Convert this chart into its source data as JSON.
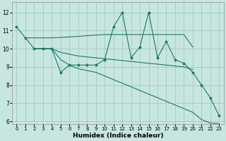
{
  "xlabel": "Humidex (Indice chaleur)",
  "background_color": "#c8e6e0",
  "grid_color": "#a8ccc8",
  "line_color": "#1a7868",
  "xlim": [
    -0.5,
    23.5
  ],
  "ylim": [
    5.85,
    12.55
  ],
  "yticks": [
    6,
    7,
    8,
    9,
    10,
    11,
    12
  ],
  "xticks": [
    0,
    1,
    2,
    3,
    4,
    5,
    6,
    7,
    8,
    9,
    10,
    11,
    12,
    13,
    14,
    15,
    16,
    17,
    18,
    19,
    20,
    21,
    22,
    23
  ],
  "line1_x": [
    0,
    1,
    2,
    3,
    4,
    5,
    6,
    7,
    8,
    9,
    10,
    11,
    12,
    13,
    14,
    15,
    16,
    17,
    18,
    19,
    20,
    21,
    22,
    23
  ],
  "line1_y": [
    11.2,
    10.6,
    10.0,
    10.0,
    10.0,
    8.7,
    9.1,
    9.1,
    9.1,
    9.1,
    9.4,
    11.2,
    12.0,
    9.5,
    10.1,
    12.0,
    9.5,
    10.4,
    9.4,
    9.2,
    8.7,
    8.0,
    7.3,
    6.3
  ],
  "line2_x": [
    1,
    2,
    3,
    4,
    5,
    6,
    7,
    8,
    9,
    10,
    14,
    15,
    16,
    17,
    18,
    19,
    20
  ],
  "line2_y": [
    10.6,
    10.6,
    10.6,
    10.6,
    10.62,
    10.65,
    10.68,
    10.72,
    10.75,
    10.78,
    10.78,
    10.78,
    10.78,
    10.78,
    10.78,
    10.78,
    10.1
  ],
  "line3_x": [
    2,
    3,
    4,
    5,
    6,
    7,
    8,
    9,
    10,
    11,
    12,
    13,
    14,
    15,
    16,
    17,
    18,
    19,
    20
  ],
  "line3_y": [
    10.0,
    10.0,
    10.0,
    9.8,
    9.7,
    9.6,
    9.55,
    9.5,
    9.45,
    9.4,
    9.35,
    9.3,
    9.25,
    9.2,
    9.15,
    9.1,
    9.05,
    9.0,
    8.85
  ],
  "line4_x": [
    2,
    3,
    4,
    5,
    6,
    7,
    8,
    9,
    10,
    11,
    12,
    13,
    14,
    15,
    16,
    17,
    18,
    19,
    20,
    21,
    22,
    23
  ],
  "line4_y": [
    10.0,
    10.0,
    10.0,
    9.4,
    9.1,
    8.9,
    8.8,
    8.7,
    8.5,
    8.3,
    8.1,
    7.9,
    7.7,
    7.5,
    7.3,
    7.1,
    6.9,
    6.7,
    6.5,
    6.1,
    5.9,
    5.87
  ]
}
